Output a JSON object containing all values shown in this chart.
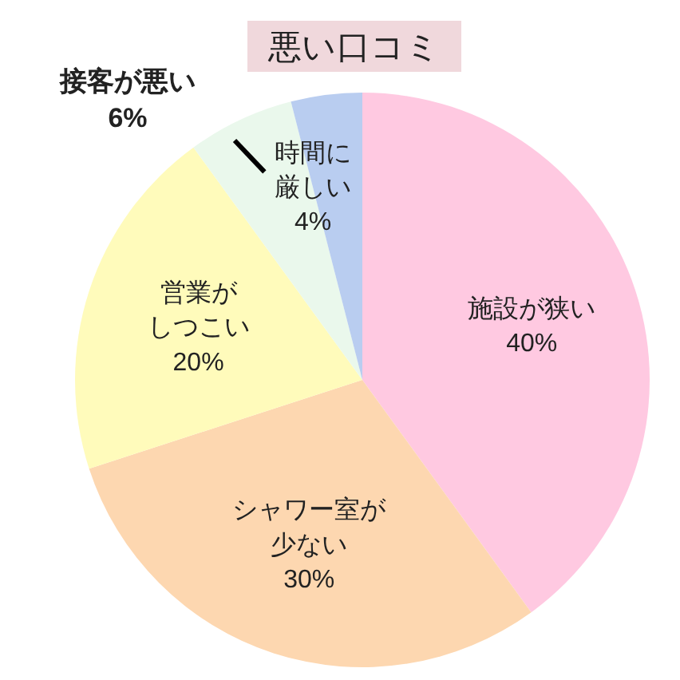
{
  "chart_data": {
    "type": "pie",
    "title": "悪い口コミ",
    "categories": [
      "施設が狭い",
      "シャワー室が少ない",
      "営業がしつこい",
      "接客が悪い",
      "時間に厳しい"
    ],
    "values": [
      40,
      30,
      20,
      6,
      4
    ],
    "value_labels": [
      "40%",
      "30%",
      "20%",
      "6%",
      "4%"
    ],
    "colors": [
      "#ffc9e1",
      "#fdd7b0",
      "#fffbbb",
      "#eaf8ec",
      "#b9cdf0"
    ]
  }
}
